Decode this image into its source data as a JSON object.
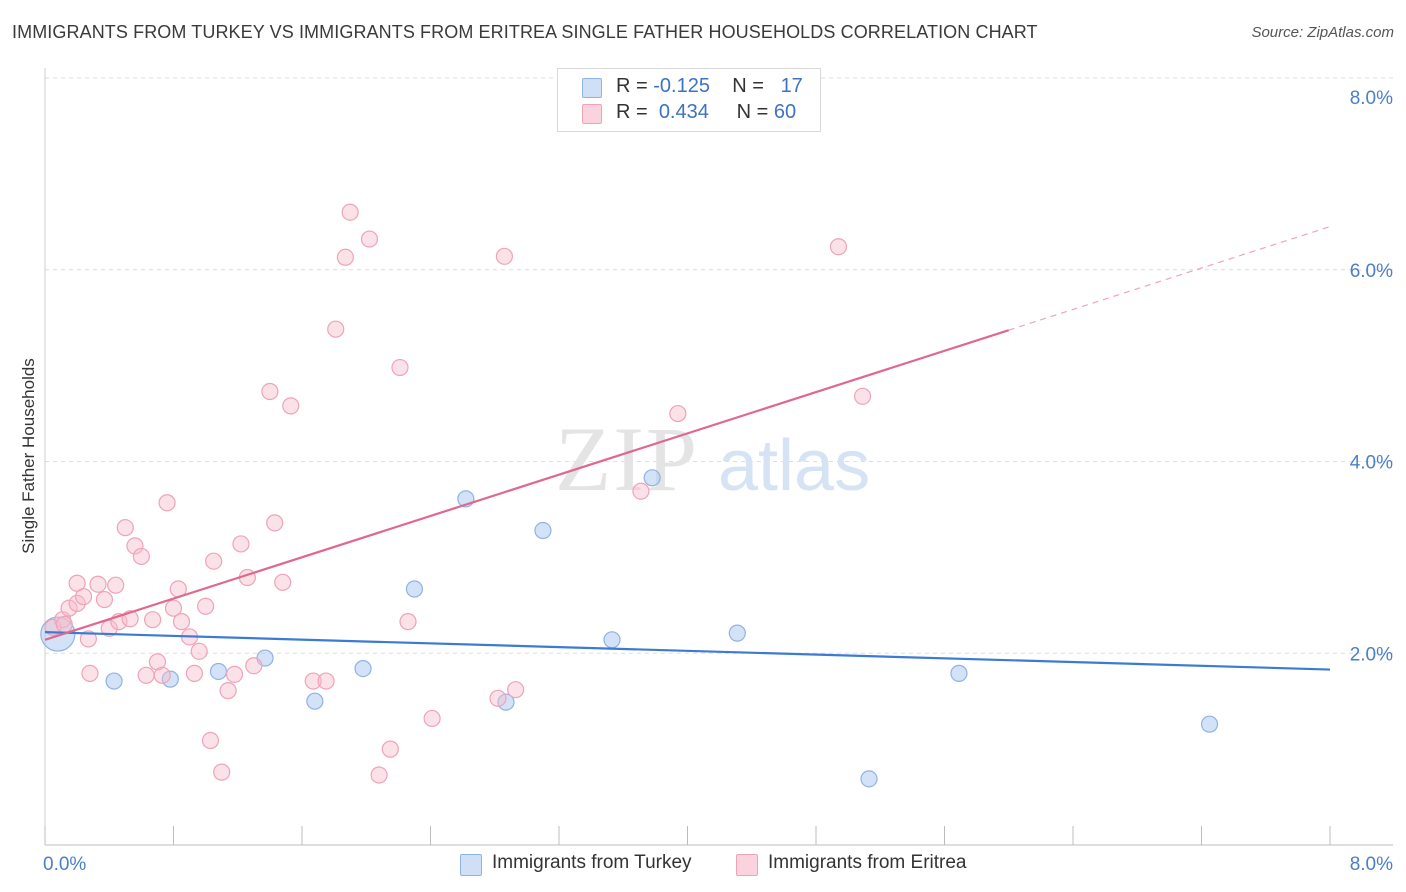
{
  "title": "IMMIGRANTS FROM TURKEY VS IMMIGRANTS FROM ERITREA SINGLE FATHER HOUSEHOLDS CORRELATION CHART",
  "source": "Source: ZipAtlas.com",
  "watermark": {
    "zip": "ZIP",
    "atlas": "atlas"
  },
  "legend_stats": [
    {
      "r_label": "R =",
      "r_value": "-0.125",
      "n_label": "N =",
      "n_value": "17",
      "color": "#aecbf0"
    },
    {
      "r_label": "R =",
      "r_value": "0.434",
      "n_label": "N =",
      "n_value": "60",
      "color": "#f7bccd"
    }
  ],
  "chart_data": {
    "type": "scatter",
    "title": "IMMIGRANTS FROM TURKEY VS IMMIGRANTS FROM ERITREA SINGLE FATHER HOUSEHOLDS CORRELATION CHART",
    "xlabel": "",
    "ylabel": "Single Father Households",
    "xlim": [
      0,
      8
    ],
    "ylim": [
      0,
      8
    ],
    "x_tick_labels": [
      "0.0%",
      "8.0%"
    ],
    "y_ticks": [
      2,
      4,
      6,
      8
    ],
    "y_tick_labels": [
      "2.0%",
      "4.0%",
      "6.0%",
      "8.0%"
    ],
    "grid": true,
    "legend_position": "bottom",
    "series": [
      {
        "name": "Immigrants from Turkey",
        "color": "#aecbf0",
        "line_color": "#3c7bd4",
        "trend": {
          "x": [
            0,
            8
          ],
          "y": [
            2.22,
            1.83
          ]
        },
        "points": [
          [
            0.08,
            2.2,
            1
          ],
          [
            0.43,
            1.71,
            0
          ],
          [
            0.78,
            1.73,
            0
          ],
          [
            1.08,
            1.81,
            0
          ],
          [
            1.37,
            1.95,
            0
          ],
          [
            1.68,
            1.5,
            0
          ],
          [
            1.98,
            1.84,
            0
          ],
          [
            2.3,
            2.67,
            0
          ],
          [
            2.62,
            3.61,
            0
          ],
          [
            2.87,
            1.49,
            0
          ],
          [
            3.1,
            3.28,
            0
          ],
          [
            3.53,
            2.14,
            0
          ],
          [
            3.78,
            3.83,
            0
          ],
          [
            4.31,
            2.21,
            0
          ],
          [
            5.69,
            1.79,
            0
          ],
          [
            5.13,
            0.69,
            0
          ],
          [
            7.25,
            1.26,
            0
          ]
        ]
      },
      {
        "name": "Immigrants from Eritrea",
        "color": "#f7bccd",
        "line_color": "#e0688f",
        "trend": {
          "x": [
            0,
            6
          ],
          "y": [
            2.14,
            5.37
          ]
        },
        "trend_dashed": {
          "x": [
            6,
            8
          ],
          "y": [
            5.37,
            6.45
          ]
        },
        "points": [
          [
            0.05,
            2.27
          ],
          [
            0.11,
            2.35
          ],
          [
            0.15,
            2.47
          ],
          [
            0.2,
            2.52
          ],
          [
            0.2,
            2.73
          ],
          [
            0.24,
            2.59
          ],
          [
            0.27,
            2.15
          ],
          [
            0.28,
            1.79
          ],
          [
            0.33,
            2.72
          ],
          [
            0.37,
            2.56
          ],
          [
            0.4,
            2.26
          ],
          [
            0.44,
            2.71
          ],
          [
            0.46,
            2.33
          ],
          [
            0.5,
            3.31
          ],
          [
            0.53,
            2.36
          ],
          [
            0.56,
            3.12
          ],
          [
            0.6,
            3.01
          ],
          [
            0.63,
            1.77
          ],
          [
            0.67,
            2.35
          ],
          [
            0.7,
            1.91
          ],
          [
            0.73,
            1.77
          ],
          [
            0.76,
            3.57
          ],
          [
            0.8,
            2.47
          ],
          [
            0.83,
            2.67
          ],
          [
            0.85,
            2.33
          ],
          [
            0.9,
            2.17
          ],
          [
            0.93,
            1.79
          ],
          [
            0.96,
            2.02
          ],
          [
            1.0,
            2.49
          ],
          [
            1.03,
            1.09
          ],
          [
            1.05,
            2.96
          ],
          [
            1.1,
            0.76
          ],
          [
            1.14,
            1.61
          ],
          [
            1.18,
            1.78
          ],
          [
            1.22,
            3.14
          ],
          [
            1.26,
            2.79
          ],
          [
            1.3,
            1.87
          ],
          [
            1.4,
            4.73
          ],
          [
            1.43,
            3.36
          ],
          [
            1.48,
            2.74
          ],
          [
            1.53,
            4.58
          ],
          [
            1.67,
            1.71
          ],
          [
            1.75,
            1.71
          ],
          [
            1.81,
            5.38
          ],
          [
            1.87,
            6.13
          ],
          [
            1.9,
            6.6
          ],
          [
            2.02,
            6.32
          ],
          [
            2.08,
            0.73
          ],
          [
            2.15,
            1.0
          ],
          [
            2.21,
            4.98
          ],
          [
            2.26,
            2.33
          ],
          [
            2.41,
            1.32
          ],
          [
            2.82,
            1.53
          ],
          [
            2.86,
            6.14
          ],
          [
            2.93,
            1.62
          ],
          [
            3.71,
            3.69
          ],
          [
            3.94,
            4.5
          ],
          [
            4.94,
            6.24
          ],
          [
            5.09,
            4.68
          ],
          [
            0.12,
            2.3
          ]
        ]
      }
    ]
  },
  "bottom_legend": [
    "Immigrants from Turkey",
    "Immigrants from Eritrea"
  ]
}
